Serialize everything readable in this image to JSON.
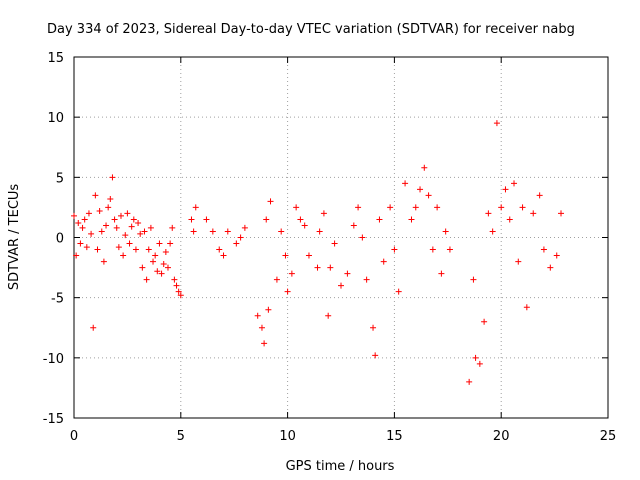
{
  "chart_data": {
    "type": "scatter",
    "title": "Day 334 of 2023, Sidereal Day-to-day VTEC variation (SDTVAR) for receiver nabg",
    "xlabel": "GPS time / hours",
    "ylabel": "SDTVAR / TECUs",
    "xlim": [
      0,
      25
    ],
    "ylim": [
      -15,
      15
    ],
    "xticks": [
      0,
      5,
      10,
      15,
      20,
      25
    ],
    "yticks": [
      -15,
      -10,
      -5,
      0,
      5,
      10,
      15
    ],
    "grid": true,
    "marker": "+",
    "series": [
      {
        "name": "SDTVAR",
        "color": "#ff0000",
        "points": [
          [
            0.0,
            1.8
          ],
          [
            0.1,
            -1.5
          ],
          [
            0.2,
            1.2
          ],
          [
            0.3,
            -0.5
          ],
          [
            0.4,
            0.8
          ],
          [
            0.5,
            1.5
          ],
          [
            0.6,
            -0.8
          ],
          [
            0.7,
            2.0
          ],
          [
            0.8,
            0.3
          ],
          [
            0.9,
            -7.5
          ],
          [
            1.0,
            3.5
          ],
          [
            1.1,
            -1.0
          ],
          [
            1.2,
            2.2
          ],
          [
            1.3,
            0.5
          ],
          [
            1.4,
            -2.0
          ],
          [
            1.5,
            1.0
          ],
          [
            1.6,
            2.5
          ],
          [
            1.7,
            3.2
          ],
          [
            1.8,
            5.0
          ],
          [
            1.9,
            1.5
          ],
          [
            2.0,
            0.8
          ],
          [
            2.1,
            -0.8
          ],
          [
            2.2,
            1.8
          ],
          [
            2.3,
            -1.5
          ],
          [
            2.4,
            0.2
          ],
          [
            2.5,
            2.0
          ],
          [
            2.6,
            -0.5
          ],
          [
            2.7,
            0.9
          ],
          [
            2.8,
            1.5
          ],
          [
            2.9,
            -1.0
          ],
          [
            3.0,
            1.2
          ],
          [
            3.1,
            0.3
          ],
          [
            3.2,
            -2.5
          ],
          [
            3.3,
            0.5
          ],
          [
            3.4,
            -3.5
          ],
          [
            3.5,
            -1.0
          ],
          [
            3.6,
            0.8
          ],
          [
            3.7,
            -2.0
          ],
          [
            3.8,
            -1.5
          ],
          [
            3.9,
            -2.8
          ],
          [
            4.0,
            -0.5
          ],
          [
            4.1,
            -3.0
          ],
          [
            4.2,
            -2.2
          ],
          [
            4.3,
            -1.2
          ],
          [
            4.4,
            -2.5
          ],
          [
            4.5,
            -0.5
          ],
          [
            4.6,
            0.8
          ],
          [
            4.7,
            -3.5
          ],
          [
            4.8,
            -4.0
          ],
          [
            4.9,
            -4.5
          ],
          [
            5.0,
            -4.8
          ],
          [
            5.5,
            1.5
          ],
          [
            5.6,
            0.5
          ],
          [
            5.7,
            2.5
          ],
          [
            6.2,
            1.5
          ],
          [
            6.5,
            0.5
          ],
          [
            6.8,
            -1.0
          ],
          [
            7.0,
            -1.5
          ],
          [
            7.2,
            0.5
          ],
          [
            7.6,
            -0.5
          ],
          [
            7.8,
            0.0
          ],
          [
            8.0,
            0.8
          ],
          [
            8.6,
            -6.5
          ],
          [
            8.8,
            -7.5
          ],
          [
            8.9,
            -8.8
          ],
          [
            9.0,
            1.5
          ],
          [
            9.1,
            -6.0
          ],
          [
            9.2,
            3.0
          ],
          [
            9.5,
            -3.5
          ],
          [
            9.7,
            0.5
          ],
          [
            9.9,
            -1.5
          ],
          [
            10.0,
            -4.5
          ],
          [
            10.2,
            -3.0
          ],
          [
            10.4,
            2.5
          ],
          [
            10.6,
            1.5
          ],
          [
            10.8,
            1.0
          ],
          [
            11.0,
            -1.5
          ],
          [
            11.4,
            -2.5
          ],
          [
            11.5,
            0.5
          ],
          [
            11.7,
            2.0
          ],
          [
            11.9,
            -6.5
          ],
          [
            12.0,
            -2.5
          ],
          [
            12.2,
            -0.5
          ],
          [
            12.5,
            -4.0
          ],
          [
            12.8,
            -3.0
          ],
          [
            13.1,
            1.0
          ],
          [
            13.3,
            2.5
          ],
          [
            13.5,
            0.0
          ],
          [
            13.7,
            -3.5
          ],
          [
            14.0,
            -7.5
          ],
          [
            14.1,
            -9.8
          ],
          [
            14.3,
            1.5
          ],
          [
            14.5,
            -2.0
          ],
          [
            14.8,
            2.5
          ],
          [
            15.0,
            -1.0
          ],
          [
            15.2,
            -4.5
          ],
          [
            15.5,
            4.5
          ],
          [
            15.8,
            1.5
          ],
          [
            16.0,
            2.5
          ],
          [
            16.2,
            4.0
          ],
          [
            16.4,
            5.8
          ],
          [
            16.6,
            3.5
          ],
          [
            16.8,
            -1.0
          ],
          [
            17.0,
            2.5
          ],
          [
            17.2,
            -3.0
          ],
          [
            17.4,
            0.5
          ],
          [
            17.6,
            -1.0
          ],
          [
            18.5,
            -12.0
          ],
          [
            18.7,
            -3.5
          ],
          [
            18.8,
            -10.0
          ],
          [
            19.0,
            -10.5
          ],
          [
            19.2,
            -7.0
          ],
          [
            19.4,
            2.0
          ],
          [
            19.6,
            0.5
          ],
          [
            19.8,
            9.5
          ],
          [
            20.0,
            2.5
          ],
          [
            20.2,
            4.0
          ],
          [
            20.4,
            1.5
          ],
          [
            20.6,
            4.5
          ],
          [
            20.8,
            -2.0
          ],
          [
            21.0,
            2.5
          ],
          [
            21.2,
            -5.8
          ],
          [
            21.5,
            2.0
          ],
          [
            21.8,
            3.5
          ],
          [
            22.0,
            -1.0
          ],
          [
            22.3,
            -2.5
          ],
          [
            22.6,
            -1.5
          ],
          [
            22.8,
            2.0
          ]
        ]
      }
    ]
  }
}
